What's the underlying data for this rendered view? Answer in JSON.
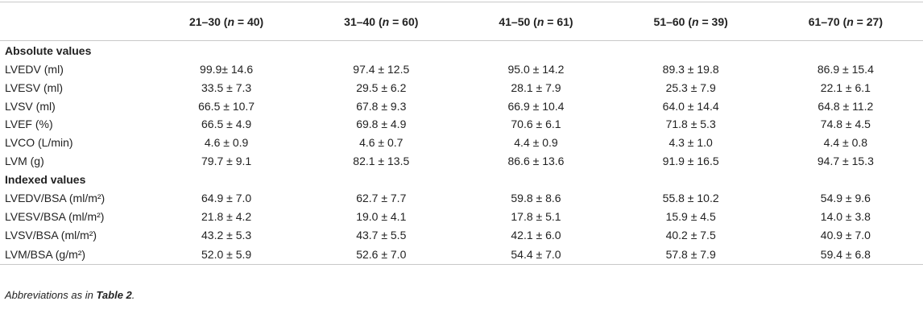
{
  "header": {
    "columns": [
      [
        "21–30 (",
        "n",
        " = 40)"
      ],
      [
        "31–40 (",
        "n",
        " = 60)"
      ],
      [
        "41–50 (",
        "n",
        " = 61)"
      ],
      [
        "51–60 (",
        "n",
        " = 39)"
      ],
      [
        "61–70 (",
        "n",
        " = 27)"
      ]
    ]
  },
  "sections": [
    {
      "title": "Absolute values",
      "rows": [
        [
          "LVEDV (ml)",
          "99.9± 14.6",
          "97.4 ± 12.5",
          "95.0 ± 14.2",
          "89.3 ± 19.8",
          "86.9 ± 15.4"
        ],
        [
          "LVESV (ml)",
          "33.5 ± 7.3",
          "29.5 ± 6.2",
          "28.1 ± 7.9",
          "25.3 ± 7.9",
          "22.1 ± 6.1"
        ],
        [
          "LVSV (ml)",
          "66.5 ± 10.7",
          "67.8 ± 9.3",
          "66.9 ± 10.4",
          "64.0 ± 14.4",
          "64.8 ± 11.2"
        ],
        [
          "LVEF (%)",
          "66.5 ± 4.9",
          "69.8 ± 4.9",
          "70.6 ± 6.1",
          "71.8 ± 5.3",
          "74.8 ± 4.5"
        ],
        [
          "LVCO (L/min)",
          "4.6 ± 0.9",
          "4.6 ± 0.7",
          "4.4 ± 0.9",
          "4.3 ± 1.0",
          "4.4 ± 0.8"
        ],
        [
          "LVM (g)",
          "79.7 ± 9.1",
          "82.1 ± 13.5",
          "86.6 ± 13.6",
          "91.9 ± 16.5",
          "94.7 ± 15.3"
        ]
      ]
    },
    {
      "title": "Indexed values",
      "rows": [
        [
          "LVEDV/BSA (ml/m²)",
          "64.9 ± 7.0",
          "62.7 ± 7.7",
          "59.8 ± 8.6",
          "55.8 ± 10.2",
          "54.9 ± 9.6"
        ],
        [
          "LVESV/BSA (ml/m²)",
          "21.8 ± 4.2",
          "19.0 ± 4.1",
          "17.8 ± 5.1",
          "15.9 ± 4.5",
          "14.0 ± 3.8"
        ],
        [
          "LVSV/BSA (ml/m²)",
          "43.2 ± 5.3",
          "43.7 ± 5.5",
          "42.1 ± 6.0",
          "40.2 ± 7.5",
          "40.9 ± 7.0"
        ],
        [
          "LVM/BSA (g/m²)",
          "52.0 ± 5.9",
          "52.6 ± 7.0",
          "54.4 ± 7.0",
          "57.8 ± 7.9",
          "59.4 ± 6.8"
        ]
      ]
    }
  ],
  "footnote": [
    "Abbreviations as in ",
    "Table 2",
    "."
  ]
}
